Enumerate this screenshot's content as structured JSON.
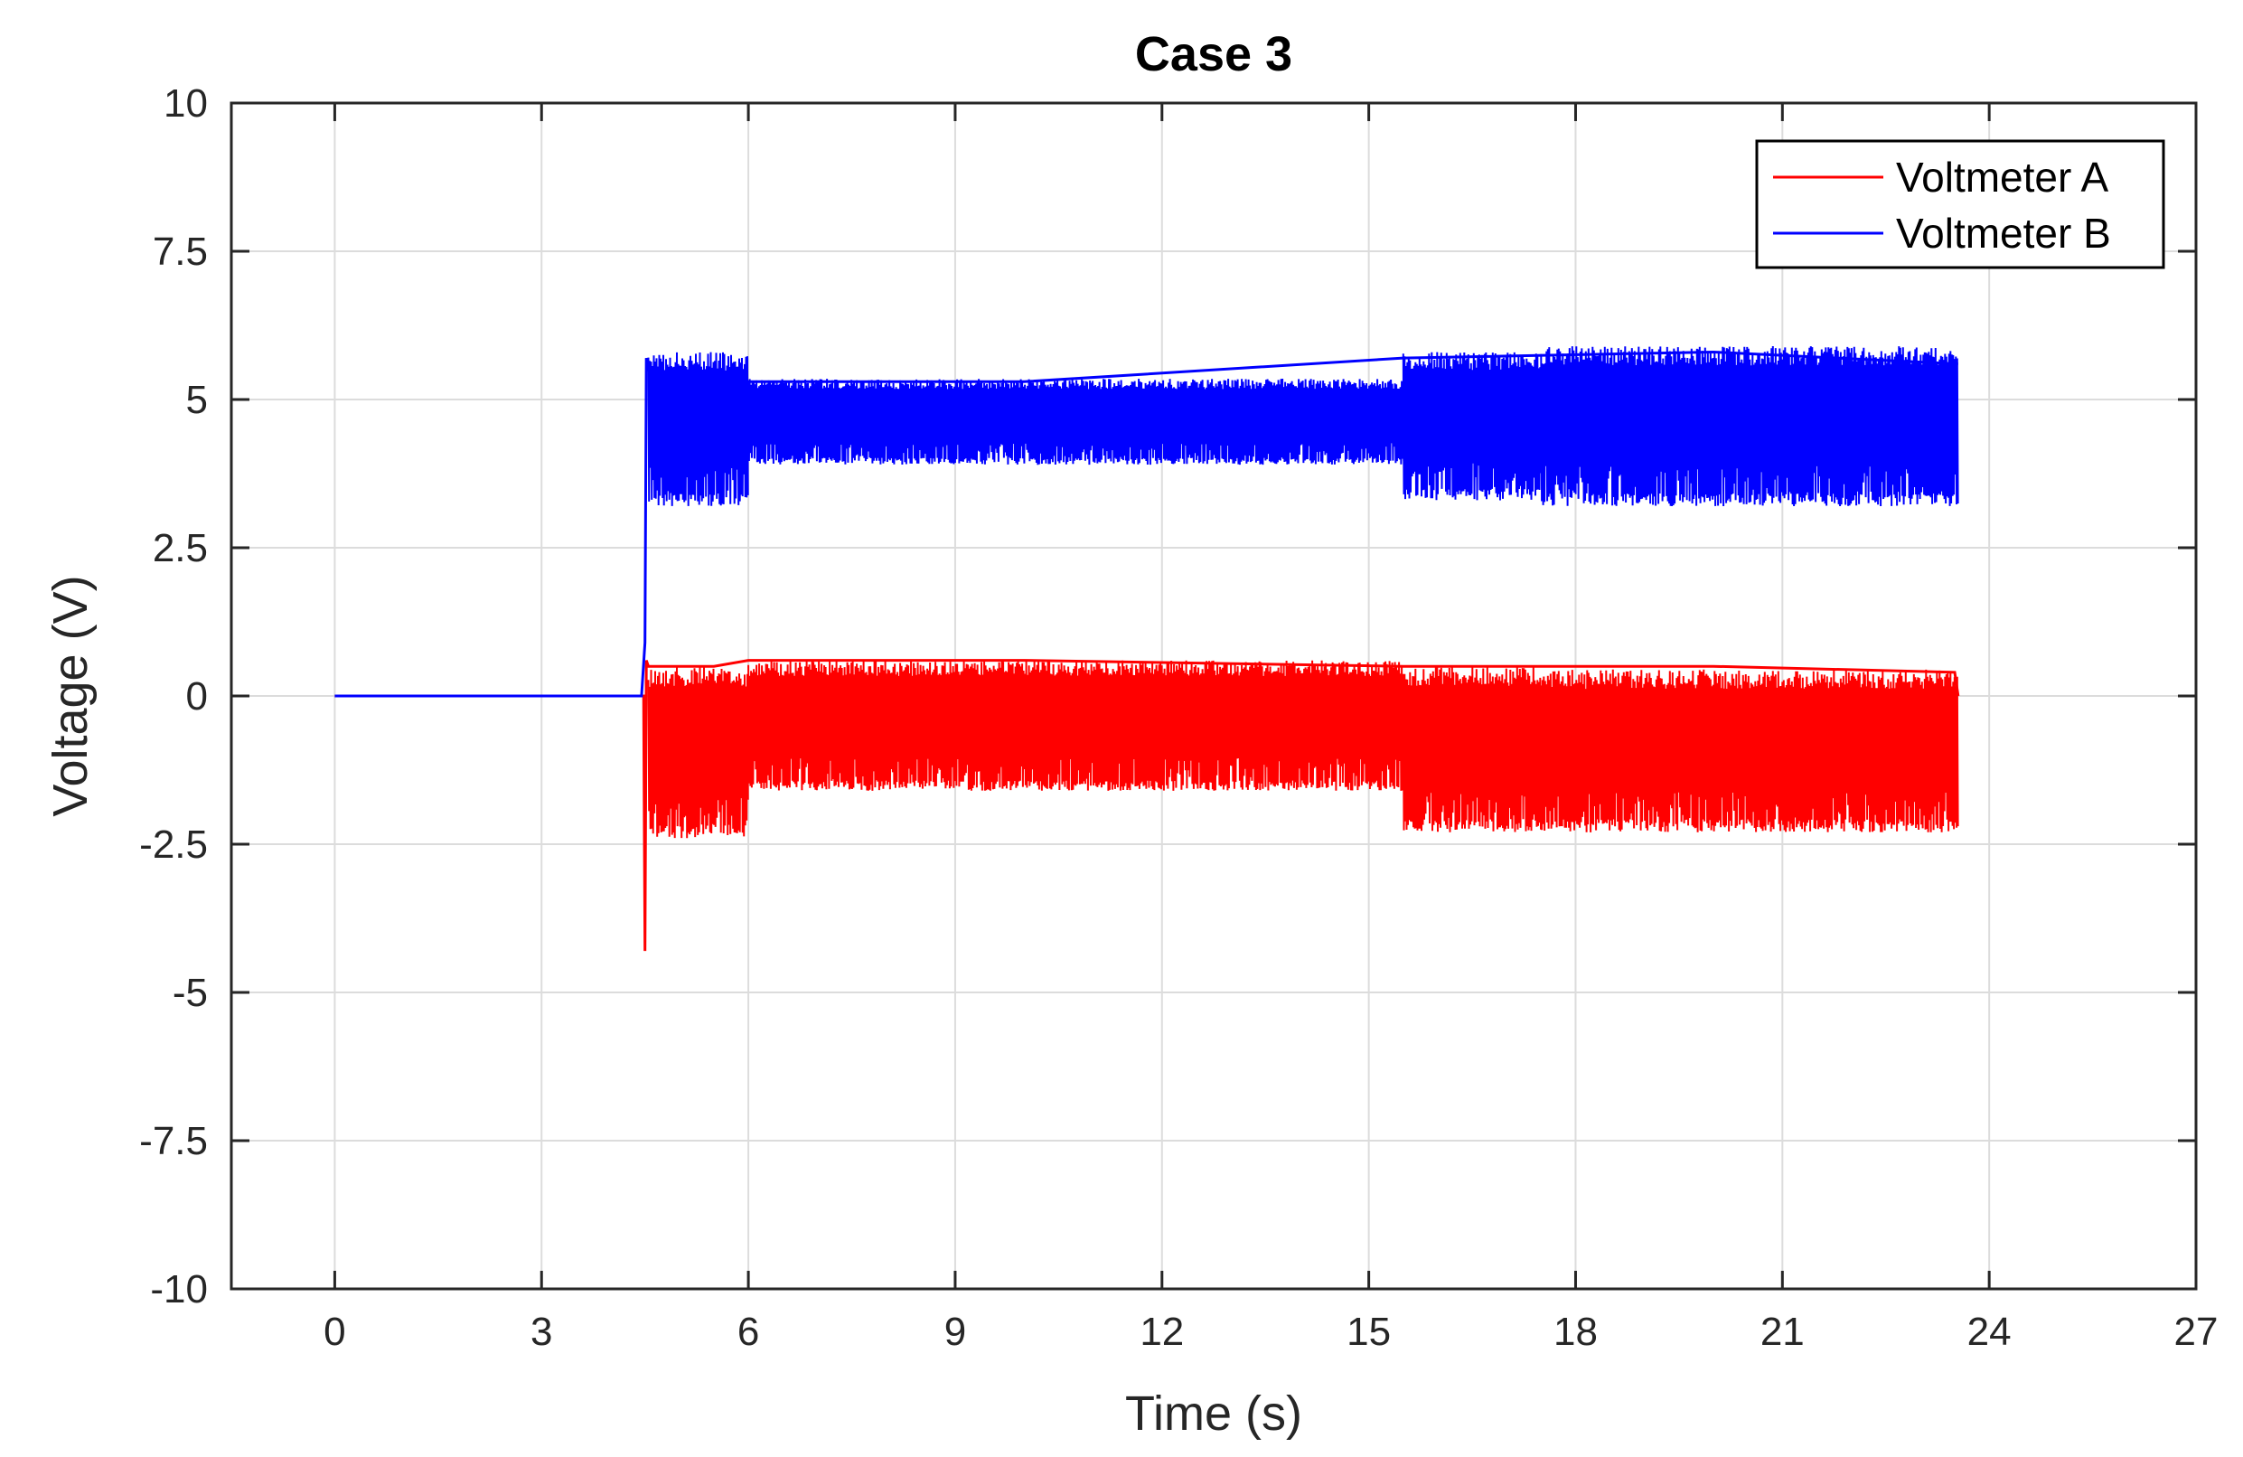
{
  "chart_data": {
    "type": "line",
    "title": "Case 3",
    "xlabel": "Time (s)",
    "ylabel": "Voltage (V)",
    "xlim": [
      -1.5,
      27
    ],
    "ylim": [
      -10,
      10
    ],
    "xticks": [
      0,
      3,
      6,
      9,
      12,
      15,
      18,
      21,
      24,
      27
    ],
    "yticks": [
      -10,
      -7.5,
      -5,
      -2.5,
      0,
      2.5,
      5,
      7.5,
      10
    ],
    "xtick_labels": [
      "0",
      "3",
      "6",
      "9",
      "12",
      "15",
      "18",
      "21",
      "24",
      "27"
    ],
    "ytick_labels": [
      "-10",
      "-7.5",
      "-5",
      "-2.5",
      "0",
      "2.5",
      "5",
      "7.5",
      "10"
    ],
    "grid": true,
    "legend_position": "top-right",
    "series": [
      {
        "name": "Voltmeter A",
        "color": "#ff0000",
        "x": [
          0,
          4.48,
          4.5,
          4.52,
          4.55,
          5.5,
          6.0,
          10.0,
          15.5,
          16.0,
          17.4,
          17.6,
          20.0,
          23.5,
          23.55
        ],
        "y": [
          0,
          0,
          -4.3,
          0.6,
          0.5,
          0.5,
          0.6,
          0.6,
          0.5,
          0.5,
          0.5,
          0.5,
          0.5,
          0.4,
          0
        ],
        "envelope_segments": [
          {
            "x_start": 4.55,
            "x_end": 6.0,
            "y_min": -2.4,
            "y_max": 0.5
          },
          {
            "x_start": 6.0,
            "x_end": 15.5,
            "y_min": -1.6,
            "y_max": 0.6
          },
          {
            "x_start": 15.5,
            "x_end": 17.5,
            "y_min": -2.3,
            "y_max": 0.5
          },
          {
            "x_start": 17.5,
            "x_end": 23.55,
            "y_min": -2.3,
            "y_max": 0.45
          }
        ]
      },
      {
        "name": "Voltmeter B",
        "color": "#0000ff",
        "x": [
          0,
          4.45,
          4.5,
          4.52,
          4.55,
          6.0,
          10.0,
          15.5,
          20.0,
          23.55
        ],
        "y": [
          0,
          0,
          0.9,
          5.7,
          5.5,
          5.3,
          5.3,
          5.7,
          5.8,
          5.6
        ],
        "envelope_segments": [
          {
            "x_start": 4.55,
            "x_end": 6.0,
            "y_min": 3.2,
            "y_max": 5.8
          },
          {
            "x_start": 6.0,
            "x_end": 15.5,
            "y_min": 3.9,
            "y_max": 5.35
          },
          {
            "x_start": 15.5,
            "x_end": 17.5,
            "y_min": 3.3,
            "y_max": 5.8
          },
          {
            "x_start": 17.5,
            "x_end": 23.55,
            "y_min": 3.2,
            "y_max": 5.9
          }
        ]
      }
    ]
  }
}
